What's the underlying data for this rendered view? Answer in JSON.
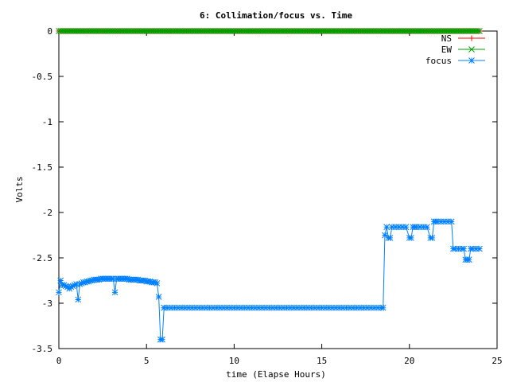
{
  "chart_data": {
    "type": "line",
    "title": "6: Collimation/focus vs. Time",
    "xlabel": "time (Elapse Hours)",
    "ylabel": "Volts",
    "xlim": [
      0,
      25
    ],
    "ylim": [
      -3.5,
      0
    ],
    "xticks": [
      0,
      5,
      10,
      15,
      20,
      25
    ],
    "yticks": [
      0,
      -0.5,
      -1,
      -1.5,
      -2,
      -2.5,
      -3,
      -3.5
    ],
    "xtick_labels": [
      "0",
      "5",
      "10",
      "15",
      "20",
      "25"
    ],
    "ytick_labels": [
      "0",
      "-0.5",
      "-1",
      "-1.5",
      "-2",
      "-2.5",
      "-3",
      "-3.5"
    ],
    "grid": false,
    "legend_position": "top-right",
    "series": [
      {
        "name": "NS",
        "color": "#ff0000",
        "marker": "plus",
        "x_range": [
          0,
          24
        ],
        "constant_y": 0,
        "points": 240
      },
      {
        "name": "EW",
        "color": "#00a000",
        "marker": "cross",
        "x_range": [
          0,
          24
        ],
        "constant_y": 0,
        "points": 240
      },
      {
        "name": "focus",
        "color": "#0080ff",
        "marker": "star",
        "segments": [
          {
            "x": [
              0.0,
              0.1,
              0.2,
              0.3,
              0.4,
              0.5,
              0.6,
              0.7,
              0.8,
              0.9,
              1.0,
              1.1,
              1.2,
              1.3,
              1.4,
              1.5,
              1.6,
              1.7,
              1.8,
              1.9,
              2.0,
              2.1,
              2.2,
              2.3,
              2.4,
              2.5,
              2.6,
              2.7,
              2.8,
              2.9,
              3.0,
              3.1,
              3.2,
              3.3,
              3.4,
              3.5,
              3.6,
              3.7,
              3.8,
              3.9,
              4.0,
              4.1,
              4.2,
              4.3,
              4.4,
              4.5,
              4.6,
              4.7,
              4.8,
              4.9,
              5.0,
              5.1,
              5.2,
              5.3,
              5.4,
              5.5,
              5.6,
              5.7,
              5.8,
              5.9,
              6.0
            ],
            "y": [
              -2.88,
              -2.75,
              -2.8,
              -2.8,
              -2.81,
              -2.82,
              -2.84,
              -2.82,
              -2.81,
              -2.8,
              -2.79,
              -2.96,
              -2.79,
              -2.78,
              -2.77,
              -2.77,
              -2.76,
              -2.76,
              -2.75,
              -2.75,
              -2.74,
              -2.74,
              -2.74,
              -2.74,
              -2.73,
              -2.73,
              -2.73,
              -2.73,
              -2.73,
              -2.73,
              -2.73,
              -2.73,
              -2.88,
              -2.73,
              -2.73,
              -2.73,
              -2.73,
              -2.73,
              -2.73,
              -2.73,
              -2.74,
              -2.74,
              -2.74,
              -2.74,
              -2.74,
              -2.74,
              -2.75,
              -2.75,
              -2.75,
              -2.75,
              -2.76,
              -2.76,
              -2.76,
              -2.77,
              -2.77,
              -2.77,
              -2.78,
              -2.93,
              -3.4,
              -3.4,
              -3.05
            ]
          },
          {
            "x_range": [
              6.0,
              18.5
            ],
            "constant_y": -3.05,
            "step": 0.2
          },
          {
            "x": [
              18.5,
              18.6,
              18.7,
              18.8,
              18.9,
              19.0,
              19.2,
              19.4,
              19.6,
              19.8,
              20.0,
              20.1,
              20.2,
              20.3,
              20.4,
              20.6,
              20.8,
              21.0,
              21.2,
              21.3,
              21.4,
              21.5,
              21.6,
              21.8,
              22.0,
              22.2,
              22.4,
              22.5,
              22.6,
              22.8,
              23.0,
              23.1,
              23.2,
              23.3,
              23.4,
              23.5,
              23.6,
              23.8,
              24.0
            ],
            "y": [
              -3.05,
              -2.25,
              -2.16,
              -2.28,
              -2.28,
              -2.16,
              -2.16,
              -2.16,
              -2.16,
              -2.16,
              -2.28,
              -2.28,
              -2.16,
              -2.16,
              -2.16,
              -2.16,
              -2.16,
              -2.16,
              -2.28,
              -2.28,
              -2.1,
              -2.1,
              -2.1,
              -2.1,
              -2.1,
              -2.1,
              -2.1,
              -2.4,
              -2.4,
              -2.4,
              -2.4,
              -2.4,
              -2.52,
              -2.52,
              -2.52,
              -2.4,
              -2.4,
              -2.4,
              -2.4
            ]
          }
        ]
      }
    ]
  }
}
